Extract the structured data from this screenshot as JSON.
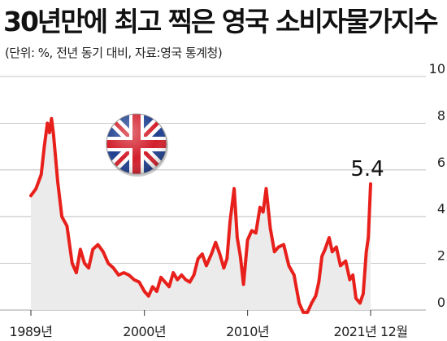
{
  "header": {
    "title": "30년만에 최고 찍은 영국 소비자물가지수",
    "subtitle": "(단위: %, 전년 동기 대비, 자료:영국 통계청)"
  },
  "icons": {
    "flag": "uk-flag-icon"
  },
  "colors": {
    "line": "#e8201c",
    "area": "#ebebeb",
    "grid": "#b5b5b5"
  },
  "chart_data": {
    "type": "area",
    "title": "30년만에 최고 찍은 영국 소비자물가지수",
    "subtitle": "(단위: %, 전년 동기 대비, 자료:영국 통계청)",
    "ylim": [
      0,
      10
    ],
    "yticks": [
      "0",
      "2",
      "4",
      "6",
      "8",
      "10"
    ],
    "x_start": 1989.0,
    "x_end": 2021.92,
    "xticks": [
      {
        "x": 1989.0,
        "label": "1989년"
      },
      {
        "x": 2000.0,
        "label": "2000년"
      },
      {
        "x": 2010.0,
        "label": "2010년"
      },
      {
        "x": 2021.92,
        "label": "2021년 12월"
      }
    ],
    "grid": true,
    "annotations": [
      {
        "x": 2021.92,
        "y": 5.4,
        "label": "5.4"
      }
    ],
    "series": [
      {
        "values": [
          [
            1989.0,
            4.9
          ],
          [
            1989.5,
            5.2
          ],
          [
            1990.0,
            5.8
          ],
          [
            1990.3,
            7.0
          ],
          [
            1990.6,
            8.0
          ],
          [
            1990.8,
            7.6
          ],
          [
            1991.0,
            8.2
          ],
          [
            1991.2,
            7.5
          ],
          [
            1991.6,
            5.5
          ],
          [
            1992.0,
            4.0
          ],
          [
            1992.5,
            3.6
          ],
          [
            1993.0,
            2.0
          ],
          [
            1993.4,
            1.6
          ],
          [
            1993.8,
            2.6
          ],
          [
            1994.2,
            2.0
          ],
          [
            1994.6,
            1.8
          ],
          [
            1995.0,
            2.6
          ],
          [
            1995.5,
            2.8
          ],
          [
            1996.0,
            2.5
          ],
          [
            1996.5,
            2.0
          ],
          [
            1997.0,
            1.8
          ],
          [
            1997.5,
            1.5
          ],
          [
            1998.0,
            1.6
          ],
          [
            1998.5,
            1.5
          ],
          [
            1999.0,
            1.3
          ],
          [
            1999.5,
            1.2
          ],
          [
            2000.0,
            0.8
          ],
          [
            2000.4,
            0.6
          ],
          [
            2000.8,
            1.0
          ],
          [
            2001.2,
            0.8
          ],
          [
            2001.6,
            1.4
          ],
          [
            2002.0,
            1.2
          ],
          [
            2002.4,
            1.0
          ],
          [
            2002.8,
            1.6
          ],
          [
            2003.2,
            1.3
          ],
          [
            2003.6,
            1.5
          ],
          [
            2004.0,
            1.3
          ],
          [
            2004.4,
            1.2
          ],
          [
            2004.8,
            1.5
          ],
          [
            2005.2,
            2.2
          ],
          [
            2005.6,
            2.4
          ],
          [
            2006.0,
            1.9
          ],
          [
            2006.5,
            2.4
          ],
          [
            2006.9,
            2.9
          ],
          [
            2007.3,
            2.4
          ],
          [
            2007.7,
            1.8
          ],
          [
            2008.0,
            2.2
          ],
          [
            2008.3,
            3.8
          ],
          [
            2008.7,
            5.2
          ],
          [
            2009.0,
            3.1
          ],
          [
            2009.3,
            2.3
          ],
          [
            2009.6,
            1.1
          ],
          [
            2010.0,
            3.0
          ],
          [
            2010.4,
            3.4
          ],
          [
            2010.8,
            3.3
          ],
          [
            2011.2,
            4.4
          ],
          [
            2011.5,
            4.2
          ],
          [
            2011.8,
            5.2
          ],
          [
            2012.2,
            3.5
          ],
          [
            2012.6,
            2.5
          ],
          [
            2013.0,
            2.7
          ],
          [
            2013.5,
            2.8
          ],
          [
            2014.0,
            1.9
          ],
          [
            2014.5,
            1.5
          ],
          [
            2015.0,
            0.3
          ],
          [
            2015.4,
            -0.1
          ],
          [
            2015.8,
            -0.1
          ],
          [
            2016.2,
            0.3
          ],
          [
            2016.6,
            0.6
          ],
          [
            2016.9,
            1.2
          ],
          [
            2017.2,
            2.3
          ],
          [
            2017.5,
            2.6
          ],
          [
            2017.9,
            3.1
          ],
          [
            2018.2,
            2.5
          ],
          [
            2018.6,
            2.7
          ],
          [
            2019.0,
            1.9
          ],
          [
            2019.5,
            2.1
          ],
          [
            2019.9,
            1.3
          ],
          [
            2020.2,
            1.5
          ],
          [
            2020.5,
            0.5
          ],
          [
            2020.9,
            0.3
          ],
          [
            2021.2,
            0.7
          ],
          [
            2021.5,
            2.5
          ],
          [
            2021.7,
            3.1
          ],
          [
            2021.92,
            5.4
          ]
        ]
      }
    ]
  }
}
